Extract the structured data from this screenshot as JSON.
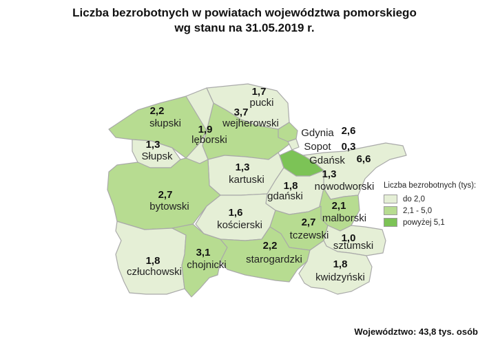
{
  "title": {
    "line1": "Liczba bezrobotnych w powiatach województwa pomorskiego",
    "line2": "wg stanu na 31.05.2019 r."
  },
  "colors": {
    "low": "#e5efd6",
    "mid": "#b7dc91",
    "high": "#7cc356",
    "border": "#a9a9a9"
  },
  "legend": {
    "title": "Liczba bezrobotnych (tys):",
    "items": [
      {
        "label": "do 2,0",
        "class": "low"
      },
      {
        "label": "2,1 - 5,0",
        "class": "mid"
      },
      {
        "label": "powyżej 5,1",
        "class": "high"
      }
    ]
  },
  "regions": [
    {
      "name": "pucki",
      "value": "1,7",
      "class": "low"
    },
    {
      "name": "słupski",
      "value": "2,2",
      "class": "mid"
    },
    {
      "name": "wejherowski",
      "value": "3,7",
      "class": "mid"
    },
    {
      "name": "lęborski",
      "value": "1,9",
      "class": "low"
    },
    {
      "name": "Słupsk",
      "value": "1,3",
      "class": "low"
    },
    {
      "name": "Gdynia",
      "value": "2,6",
      "class": "mid"
    },
    {
      "name": "Sopot",
      "value": "0,3",
      "class": "low"
    },
    {
      "name": "Gdańsk",
      "value": "6,6",
      "class": "high"
    },
    {
      "name": "kartuski",
      "value": "1,3",
      "class": "low"
    },
    {
      "name": "nowodworski",
      "value": "1,3",
      "class": "low"
    },
    {
      "name": "bytowski",
      "value": "2,7",
      "class": "mid"
    },
    {
      "name": "gdański",
      "value": "1,8",
      "class": "low"
    },
    {
      "name": "malborski",
      "value": "2,1",
      "class": "mid"
    },
    {
      "name": "kościerski",
      "value": "1,6",
      "class": "low"
    },
    {
      "name": "tczewski",
      "value": "2,7",
      "class": "mid"
    },
    {
      "name": "sztumski",
      "value": "1,0",
      "class": "low"
    },
    {
      "name": "człuchowski",
      "value": "1,8",
      "class": "low"
    },
    {
      "name": "chojnicki",
      "value": "3,1",
      "class": "mid"
    },
    {
      "name": "starogardzki",
      "value": "2,2",
      "class": "mid"
    },
    {
      "name": "kwidzyński",
      "value": "1,8",
      "class": "low"
    }
  ],
  "footer": "Województwo: 43,8 tys. osób"
}
